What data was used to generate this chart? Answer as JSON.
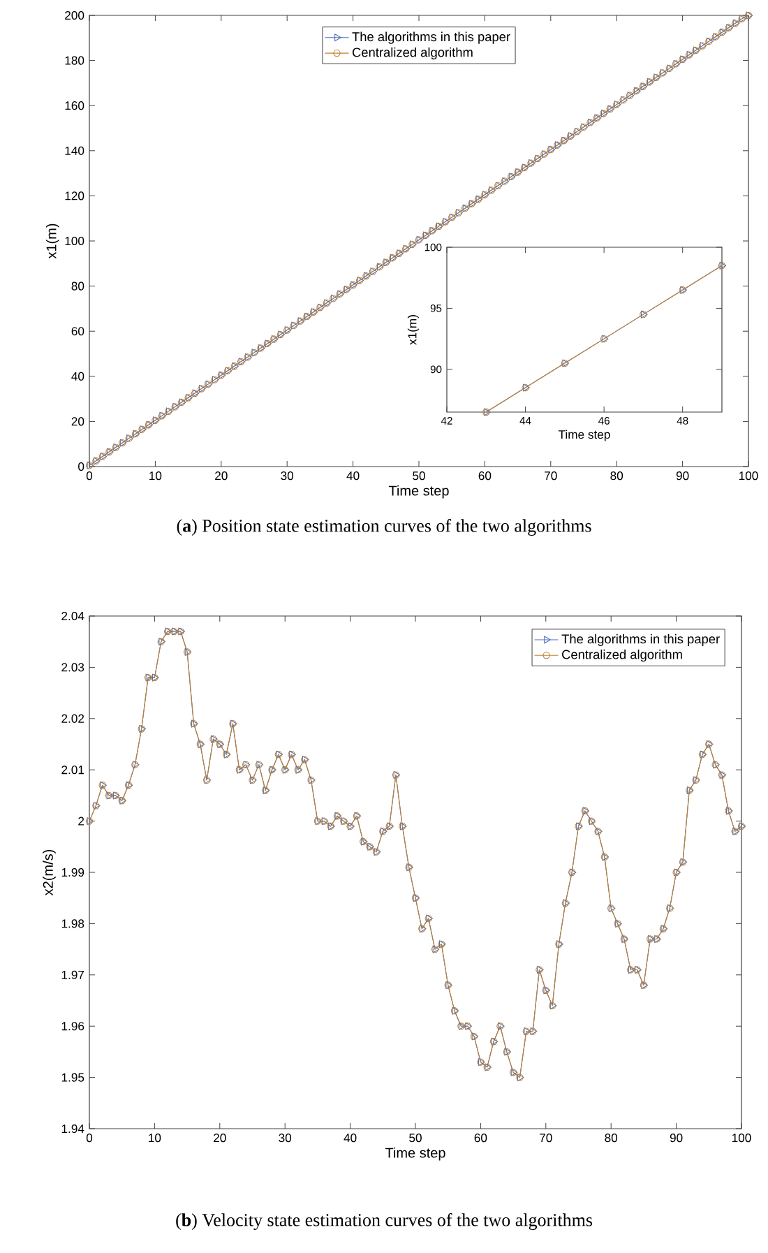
{
  "chart_data": [
    {
      "type": "line",
      "xlabel": "Time step",
      "ylabel": "x1(m)",
      "annotations": [
        "(**a**) Position state estimation curves of the two algorithms"
      ],
      "legend": "top",
      "xlim": [
        0,
        100
      ],
      "ylim": [
        0,
        200
      ],
      "xticks": [
        0,
        10,
        20,
        30,
        40,
        50,
        60,
        70,
        80,
        90,
        100
      ],
      "yticks": [
        0,
        20,
        40,
        60,
        80,
        100,
        120,
        140,
        160,
        180,
        200
      ],
      "x": [
        0,
        1,
        2,
        3,
        4,
        5,
        6,
        7,
        8,
        9,
        10,
        11,
        12,
        13,
        14,
        15,
        16,
        17,
        18,
        19,
        20,
        21,
        22,
        23,
        24,
        25,
        26,
        27,
        28,
        29,
        30,
        31,
        32,
        33,
        34,
        35,
        36,
        37,
        38,
        39,
        40,
        41,
        42,
        43,
        44,
        45,
        46,
        47,
        48,
        49,
        50,
        51,
        52,
        53,
        54,
        55,
        56,
        57,
        58,
        59,
        60,
        61,
        62,
        63,
        64,
        65,
        66,
        67,
        68,
        69,
        70,
        71,
        72,
        73,
        74,
        75,
        76,
        77,
        78,
        79,
        80,
        81,
        82,
        83,
        84,
        85,
        86,
        87,
        88,
        89,
        90,
        91,
        92,
        93,
        94,
        95,
        96,
        97,
        98,
        99,
        100
      ],
      "series": [
        {
          "name": "The algorithms in this paper",
          "color": "#4f6fb8",
          "marker": "triangle",
          "values": [
            0.5,
            2.5,
            4.5,
            6.5,
            8.5,
            10.5,
            12.5,
            14.5,
            16.5,
            18.5,
            20.5,
            22.5,
            24.5,
            26.5,
            28.5,
            30.5,
            32.5,
            34.5,
            36.5,
            38.5,
            40.5,
            42.5,
            44.5,
            46.5,
            48.5,
            50.5,
            52.5,
            54.5,
            56.5,
            58.5,
            60.5,
            62.5,
            64.5,
            66.5,
            68.5,
            70.5,
            72.5,
            74.5,
            76.5,
            78.5,
            80.5,
            82.5,
            84.5,
            86.5,
            88.5,
            90.5,
            92.5,
            94.5,
            96.5,
            98.5,
            100.5,
            102.5,
            104.5,
            106.5,
            108.5,
            110.5,
            112.5,
            114.5,
            116.5,
            118.5,
            120.5,
            122.5,
            124.5,
            126.5,
            128.5,
            130.5,
            132.5,
            134.5,
            136.5,
            138.5,
            140.5,
            142.5,
            144.5,
            146.5,
            148.5,
            150.5,
            152.5,
            154.5,
            156.5,
            158.5,
            160.5,
            162.5,
            164.5,
            166.5,
            168.5,
            170.5,
            172.5,
            174.5,
            176.5,
            178.5,
            180.5,
            182.5,
            184.5,
            186.5,
            188.5,
            190.5,
            192.5,
            194.5,
            196.5,
            198.5,
            200
          ]
        },
        {
          "name": "Centralized algorithm",
          "color": "#c08030",
          "marker": "circle",
          "values": [
            0.5,
            2.5,
            4.5,
            6.5,
            8.5,
            10.5,
            12.5,
            14.5,
            16.5,
            18.5,
            20.5,
            22.5,
            24.5,
            26.5,
            28.5,
            30.5,
            32.5,
            34.5,
            36.5,
            38.5,
            40.5,
            42.5,
            44.5,
            46.5,
            48.5,
            50.5,
            52.5,
            54.5,
            56.5,
            58.5,
            60.5,
            62.5,
            64.5,
            66.5,
            68.5,
            70.5,
            72.5,
            74.5,
            76.5,
            78.5,
            80.5,
            82.5,
            84.5,
            86.5,
            88.5,
            90.5,
            92.5,
            94.5,
            96.5,
            98.5,
            100.5,
            102.5,
            104.5,
            106.5,
            108.5,
            110.5,
            112.5,
            114.5,
            116.5,
            118.5,
            120.5,
            122.5,
            124.5,
            126.5,
            128.5,
            130.5,
            132.5,
            134.5,
            136.5,
            138.5,
            140.5,
            142.5,
            144.5,
            146.5,
            148.5,
            150.5,
            152.5,
            154.5,
            156.5,
            158.5,
            160.5,
            162.5,
            164.5,
            166.5,
            168.5,
            170.5,
            172.5,
            174.5,
            176.5,
            178.5,
            180.5,
            182.5,
            184.5,
            186.5,
            188.5,
            190.5,
            192.5,
            194.5,
            196.5,
            198.5,
            200
          ]
        }
      ]
    },
    {
      "type": "line",
      "xlabel": "Time step",
      "ylabel": "x2(m/s)",
      "annotations": [
        "(**b**) Velocity state estimation curves of the two algorithms"
      ],
      "legend": "top right",
      "xlim": [
        0,
        100
      ],
      "ylim": [
        1.94,
        2.04
      ],
      "xticks": [
        0,
        10,
        20,
        30,
        40,
        50,
        60,
        70,
        80,
        90,
        100
      ],
      "yticks": [
        1.94,
        1.95,
        1.96,
        1.97,
        1.98,
        1.99,
        2,
        2.01,
        2.02,
        2.03,
        2.04
      ],
      "x": [
        0,
        1,
        2,
        3,
        4,
        5,
        6,
        7,
        8,
        9,
        10,
        11,
        12,
        13,
        14,
        15,
        16,
        17,
        18,
        19,
        20,
        21,
        22,
        23,
        24,
        25,
        26,
        27,
        28,
        29,
        30,
        31,
        32,
        33,
        34,
        35,
        36,
        37,
        38,
        39,
        40,
        41,
        42,
        43,
        44,
        45,
        46,
        47,
        48,
        49,
        50,
        51,
        52,
        53,
        54,
        55,
        56,
        57,
        58,
        59,
        60,
        61,
        62,
        63,
        64,
        65,
        66,
        67,
        68,
        69,
        70,
        71,
        72,
        73,
        74,
        75,
        76,
        77,
        78,
        79,
        80,
        81,
        82,
        83,
        84,
        85,
        86,
        87,
        88,
        89,
        90,
        91,
        92,
        93,
        94,
        95,
        96,
        97,
        98,
        99,
        100
      ],
      "series": [
        {
          "name": "The algorithms in this paper",
          "color": "#4f6fb8",
          "marker": "triangle",
          "values": [
            2.0,
            2.003,
            2.007,
            2.005,
            2.005,
            2.004,
            2.007,
            2.011,
            2.018,
            2.028,
            2.028,
            2.035,
            2.037,
            2.037,
            2.037,
            2.033,
            2.019,
            2.015,
            2.008,
            2.016,
            2.015,
            2.013,
            2.019,
            2.01,
            2.011,
            2.008,
            2.011,
            2.006,
            2.01,
            2.013,
            2.01,
            2.013,
            2.01,
            2.012,
            2.008,
            2.0,
            2.0,
            1.999,
            2.001,
            2.0,
            1.999,
            2.001,
            1.996,
            1.995,
            1.994,
            1.998,
            1.999,
            2.009,
            1.999,
            1.991,
            1.985,
            1.979,
            1.981,
            1.975,
            1.976,
            1.968,
            1.963,
            1.96,
            1.96,
            1.958,
            1.953,
            1.952,
            1.957,
            1.96,
            1.955,
            1.951,
            1.95,
            1.959,
            1.959,
            1.971,
            1.967,
            1.964,
            1.976,
            1.984,
            1.99,
            1.999,
            2.002,
            2.0,
            1.998,
            1.993,
            1.983,
            1.98,
            1.977,
            1.971,
            1.971,
            1.968,
            1.977,
            1.977,
            1.979,
            1.983,
            1.99,
            1.992,
            2.006,
            2.008,
            2.013,
            2.015,
            2.011,
            2.009,
            2.002,
            1.998,
            1.999
          ]
        },
        {
          "name": "Centralized algorithm",
          "color": "#c08030",
          "marker": "circle",
          "values": [
            2.0,
            2.003,
            2.007,
            2.005,
            2.005,
            2.004,
            2.007,
            2.011,
            2.018,
            2.028,
            2.028,
            2.035,
            2.037,
            2.037,
            2.037,
            2.033,
            2.019,
            2.015,
            2.008,
            2.016,
            2.015,
            2.013,
            2.019,
            2.01,
            2.011,
            2.008,
            2.011,
            2.006,
            2.01,
            2.013,
            2.01,
            2.013,
            2.01,
            2.012,
            2.008,
            2.0,
            2.0,
            1.999,
            2.001,
            2.0,
            1.999,
            2.001,
            1.996,
            1.995,
            1.994,
            1.998,
            1.999,
            2.009,
            1.999,
            1.991,
            1.985,
            1.979,
            1.981,
            1.975,
            1.976,
            1.968,
            1.963,
            1.96,
            1.96,
            1.958,
            1.953,
            1.952,
            1.957,
            1.96,
            1.955,
            1.951,
            1.95,
            1.959,
            1.959,
            1.971,
            1.967,
            1.964,
            1.976,
            1.984,
            1.99,
            1.999,
            2.002,
            2.0,
            1.998,
            1.993,
            1.983,
            1.98,
            1.977,
            1.971,
            1.971,
            1.968,
            1.977,
            1.977,
            1.979,
            1.983,
            1.99,
            1.992,
            2.006,
            2.008,
            2.013,
            2.015,
            2.011,
            2.009,
            2.002,
            1.998,
            1.999
          ]
        }
      ]
    },
    {
      "type": "line",
      "xlabel": "Time step",
      "ylabel": "x1(m)",
      "xlim": [
        42,
        49
      ],
      "ylim": [
        86.5,
        100
      ],
      "xticks": [
        42,
        44,
        46,
        48
      ],
      "yticks": [
        90,
        95,
        100
      ],
      "x": [
        43,
        44,
        45,
        46,
        47,
        48,
        49
      ],
      "series": [
        {
          "color": "#4f6fb8",
          "marker": "triangle",
          "values": [
            86.5,
            88.5,
            90.5,
            92.5,
            94.5,
            96.5,
            98.5
          ]
        },
        {
          "color": "#c08030",
          "marker": "circle",
          "values": [
            86.5,
            88.5,
            90.5,
            92.5,
            94.5,
            96.5,
            98.5
          ]
        }
      ]
    }
  ]
}
